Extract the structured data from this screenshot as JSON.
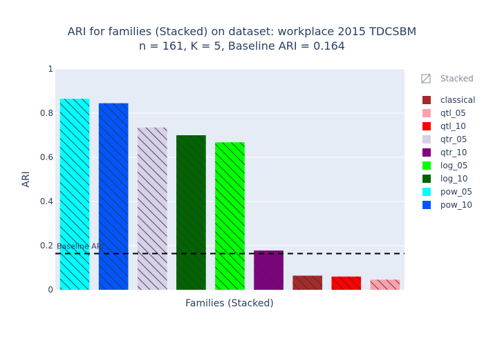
{
  "chart_data": {
    "type": "bar",
    "title_line1": "ARI for families (Stacked) on dataset: workplace 2015 TDCSBM",
    "title_line2": "n = 161, K = 5, Baseline ARI = 0.164",
    "xlabel": "Families (Stacked)",
    "ylabel": "ARI",
    "ylim": [
      0,
      1
    ],
    "yticks": [
      "0",
      "0.2",
      "0.4",
      "0.6",
      "0.8",
      "1"
    ],
    "yticks_values": [
      0,
      0.2,
      0.4,
      0.6,
      0.8,
      1
    ],
    "baseline": {
      "label": "Baseline ARI",
      "value": 0.164
    },
    "bars": [
      {
        "name": "pow_05",
        "value": 0.865,
        "color": "#00ffff"
      },
      {
        "name": "pow_10",
        "value": 0.845,
        "color": "#0055ff"
      },
      {
        "name": "qtr_05",
        "value": 0.735,
        "color": "#d8cfe8"
      },
      {
        "name": "log_10",
        "value": 0.7,
        "color": "#006400"
      },
      {
        "name": "log_05",
        "value": 0.668,
        "color": "#00ff00"
      },
      {
        "name": "qtr_10",
        "value": 0.178,
        "color": "#800080"
      },
      {
        "name": "classical",
        "value": 0.064,
        "color": "#a52a2a"
      },
      {
        "name": "qtl_10",
        "value": 0.06,
        "color": "#ff0000"
      },
      {
        "name": "qtl_05",
        "value": 0.046,
        "color": "#ffa0ac"
      }
    ],
    "legend": {
      "header": "Stacked",
      "placement": "right",
      "items": [
        {
          "name": "classical",
          "color": "#a52a2a"
        },
        {
          "name": "qtl_05",
          "color": "#ffa0ac"
        },
        {
          "name": "qtl_10",
          "color": "#ff0000"
        },
        {
          "name": "qtr_05",
          "color": "#d8cfe8"
        },
        {
          "name": "qtr_10",
          "color": "#800080"
        },
        {
          "name": "log_05",
          "color": "#00ff00"
        },
        {
          "name": "log_10",
          "color": "#006400"
        },
        {
          "name": "pow_05",
          "color": "#00ffff"
        },
        {
          "name": "pow_10",
          "color": "#0055ff"
        }
      ]
    },
    "plot_bg": "#e5ecf6",
    "grid": true,
    "pattern": "diagonal-hatch"
  }
}
